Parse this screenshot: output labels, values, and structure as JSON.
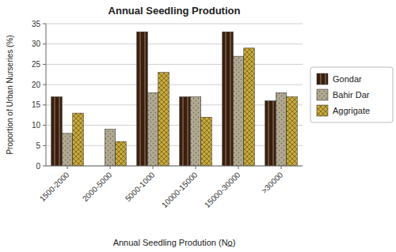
{
  "chart_data": {
    "type": "bar",
    "title": "Annual Seedling Prodution",
    "xlabel": "Annual Seedling Prodution (No̲)",
    "ylabel": "Proportion of Urban Nurseries (%)",
    "categories": [
      "1500-2000",
      "2000-5000",
      "5000-1000",
      "10000-15000",
      "15000-30000",
      ">30000"
    ],
    "series": [
      {
        "name": "Gondar",
        "color": "#3B1E0B",
        "values": [
          17,
          0,
          33,
          17,
          33,
          16
        ]
      },
      {
        "name": "Bahir Dar",
        "color": "#B0A890",
        "values": [
          8,
          9,
          18,
          17,
          27,
          18
        ]
      },
      {
        "name": "Aggrigate",
        "color": "#C8A93A",
        "values": [
          13,
          6,
          23,
          12,
          29,
          17
        ]
      }
    ],
    "ylim": [
      0,
      35
    ],
    "yticks": [
      0,
      5,
      10,
      15,
      20,
      25,
      30,
      35
    ],
    "grid": true,
    "legend": "right"
  }
}
